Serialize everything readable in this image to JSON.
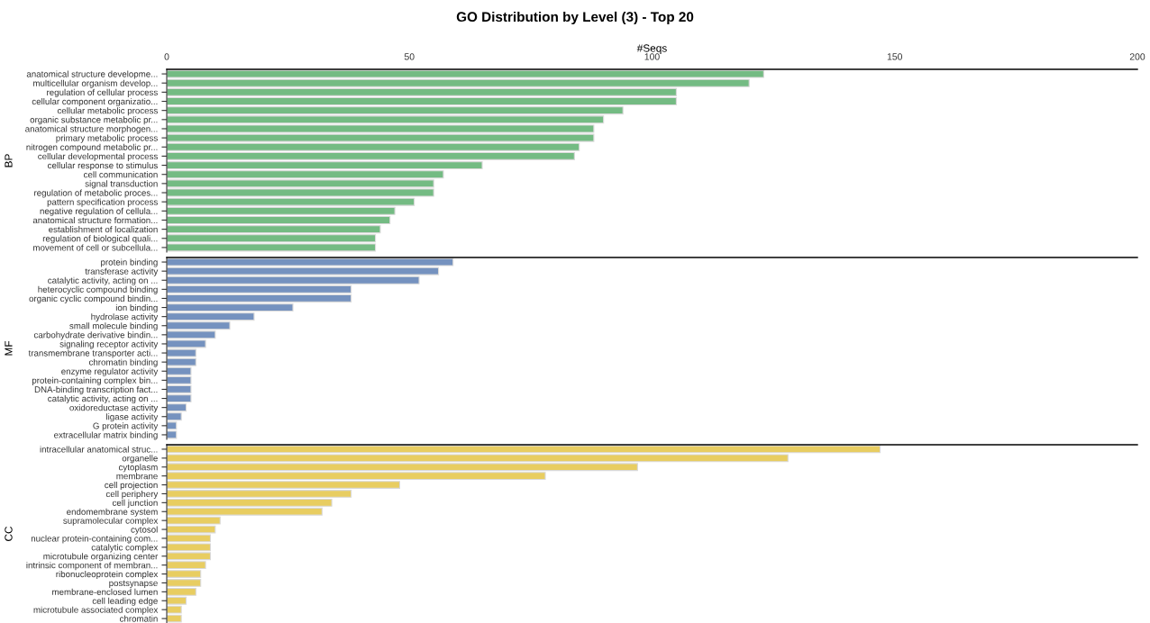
{
  "chart_data": [
    {
      "type": "bar",
      "orientation": "horizontal",
      "title": "GO Distribution by Level (3) - Top 20",
      "xlabel": "#Seqs",
      "ylabel": "BP",
      "xlim": [
        0,
        200
      ],
      "xticks": [
        0,
        50,
        100,
        150,
        200
      ],
      "grid": false,
      "categories": [
        "anatomical structure developme...",
        "multicellular organism develop...",
        "regulation of cellular process",
        "cellular component organizatio...",
        "cellular metabolic process",
        "organic substance metabolic pr...",
        "anatomical structure morphogen...",
        "primary metabolic process",
        "nitrogen compound metabolic pr...",
        "cellular developmental process",
        "cellular response to stimulus",
        "cell communication",
        "signal transduction",
        "regulation of metabolic proces...",
        "pattern specification process",
        "negative regulation of cellula...",
        "anatomical structure formation...",
        "establishment of localization",
        "regulation of biological quali...",
        "movement of cell or subcellula..."
      ],
      "series": [
        {
          "color": "#74bb83",
          "values": [
            123,
            120,
            105,
            105,
            94,
            90,
            88,
            88,
            85,
            84,
            65,
            57,
            55,
            55,
            51,
            47,
            46,
            44,
            43,
            43
          ]
        }
      ]
    },
    {
      "type": "bar",
      "orientation": "horizontal",
      "ylabel": "MF",
      "xlim": [
        0,
        200
      ],
      "tick_labels": "y",
      "grid": false,
      "categories": [
        "protein binding",
        "transferase activity",
        "catalytic activity, acting on ...",
        "heterocyclic compound binding",
        "organic cyclic compound bindin...",
        "ion binding",
        "hydrolase activity",
        "small molecule binding",
        "carbohydrate derivative bindin...",
        "signaling receptor activity",
        "transmembrane transporter acti...",
        "chromatin binding",
        "enzyme regulator activity",
        "protein-containing complex bin...",
        "DNA-binding transcription fact...",
        "catalytic activity, acting on ...",
        "oxidoreductase activity",
        "ligase activity",
        "G protein activity",
        "extracellular matrix binding"
      ],
      "series": [
        {
          "color": "#7592bf",
          "values": [
            59,
            56,
            52,
            38,
            38,
            26,
            18,
            13,
            10,
            8,
            6,
            6,
            5,
            5,
            5,
            5,
            4,
            3,
            2,
            2
          ]
        }
      ]
    },
    {
      "type": "bar",
      "orientation": "horizontal",
      "ylabel": "CC",
      "xlim": [
        0,
        200
      ],
      "tick_labels": "y",
      "grid": false,
      "categories": [
        "intracellular anatomical struc...",
        "organelle",
        "cytoplasm",
        "membrane",
        "cell projection",
        "cell periphery",
        "cell junction",
        "endomembrane system",
        "supramolecular complex",
        "cytosol",
        "nuclear protein-containing com...",
        "catalytic complex",
        "microtubule organizing center",
        "intrinsic component of membran...",
        "ribonucleoprotein complex",
        "postsynapse",
        "membrane-enclosed lumen",
        "cell leading edge",
        "microtubule associated complex",
        "chromatin"
      ],
      "series": [
        {
          "color": "#e8cd61",
          "values": [
            147,
            128,
            97,
            78,
            48,
            38,
            34,
            32,
            11,
            10,
            9,
            9,
            9,
            8,
            7,
            7,
            6,
            4,
            3,
            3
          ]
        }
      ]
    }
  ]
}
